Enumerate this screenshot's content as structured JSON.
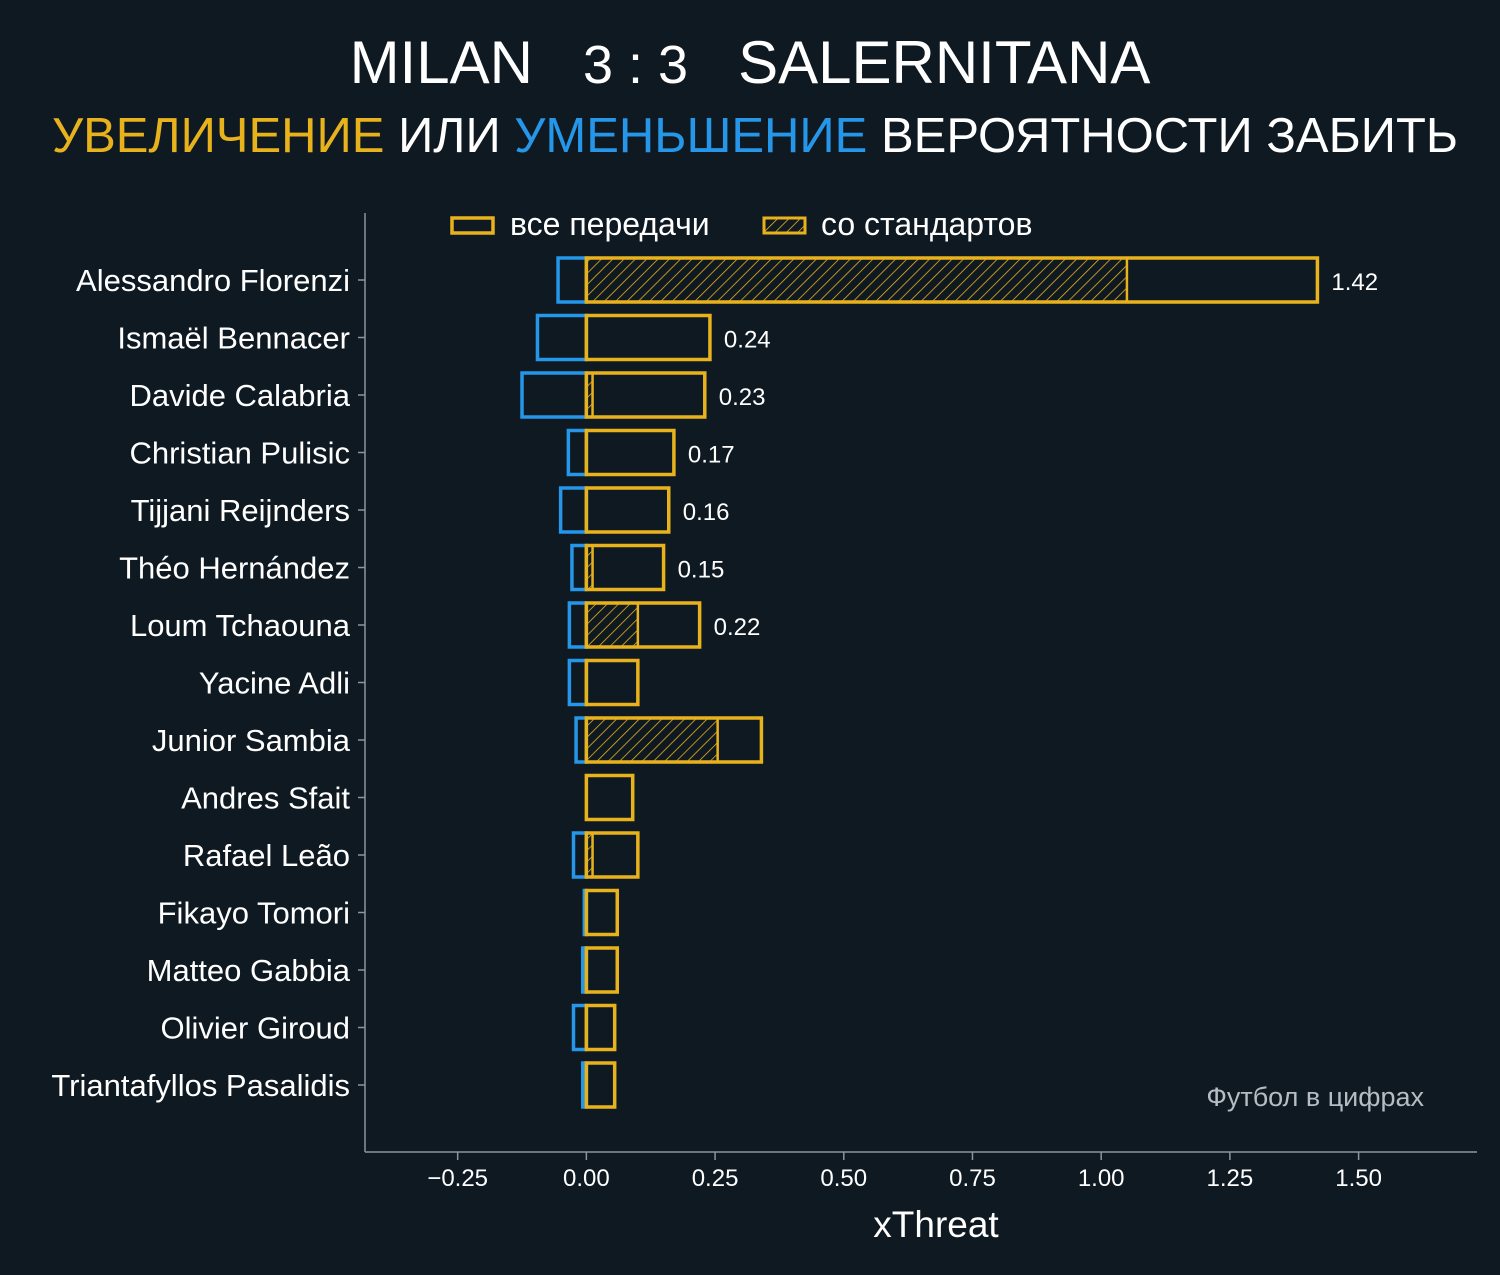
{
  "header": {
    "team_home": "MILAN",
    "score_home": "3",
    "score_sep": ":",
    "score_away": "3",
    "team_away": "SALERNITANA",
    "sub_increase": "УВЕЛИЧЕНИЕ",
    "sub_or": "ИЛИ",
    "sub_decrease": "УМЕНЬШЕНИЕ",
    "sub_rest": "ВЕРОЯТНОСТИ ЗАБИТЬ"
  },
  "watermark": "Футбол в цифрах",
  "colors": {
    "background": "#0f1921",
    "increase": "#e8b21d",
    "decrease": "#2596e8",
    "axis": "#8a969e",
    "text": "#ffffff"
  },
  "chart_data": {
    "type": "bar",
    "orientation": "horizontal",
    "xlabel": "xThreat",
    "xlim": [
      -0.43,
      1.73
    ],
    "xticks": [
      -0.25,
      0.0,
      0.25,
      0.5,
      0.75,
      1.0,
      1.25,
      1.5
    ],
    "xtick_labels": [
      "−0.25",
      "0.00",
      "0.25",
      "0.50",
      "0.75",
      "1.00",
      "1.25",
      "1.50"
    ],
    "legend": {
      "placement": "top",
      "entries": [
        "все передачи",
        "со стандартов"
      ]
    },
    "categories": [
      "Alessandro Florenzi",
      "Ismaël Bennacer",
      "Davide Calabria",
      "Christian Pulisic",
      "Tijjani Reijnders",
      "Théo Hernández",
      "Loum Tchaouna",
      "Yacine Adli",
      "Junior Sambia",
      "Andres Sfait",
      "Rafael Leão",
      "Fikayo Tomori",
      "Matteo Gabbia",
      "Olivier Giroud",
      "Triantafyllos Pasalidis"
    ],
    "series": [
      {
        "name": "все передачи",
        "key": "positive",
        "values": [
          1.42,
          0.24,
          0.23,
          0.17,
          0.16,
          0.15,
          0.22,
          0.1,
          0.34,
          0.09,
          0.1,
          0.06,
          0.06,
          0.055,
          0.055
        ]
      },
      {
        "key": "negative",
        "values": [
          -0.055,
          -0.095,
          -0.125,
          -0.035,
          -0.05,
          -0.028,
          -0.033,
          -0.033,
          -0.02,
          0.0,
          -0.025,
          -0.004,
          -0.007,
          -0.025,
          -0.007
        ]
      },
      {
        "name": "со стандартов",
        "key": "set_pieces",
        "values": [
          1.05,
          0.0,
          0.012,
          0.0,
          0.0,
          0.012,
          0.1,
          0.0,
          0.255,
          0.0,
          0.012,
          0.0,
          0.0,
          0.0,
          0.0
        ]
      }
    ],
    "value_labels": [
      "1.42",
      "0.24",
      "0.23",
      "0.17",
      "0.16",
      "0.15",
      "0.22",
      "",
      "",
      "",
      "",
      "",
      "",
      "",
      ""
    ]
  }
}
